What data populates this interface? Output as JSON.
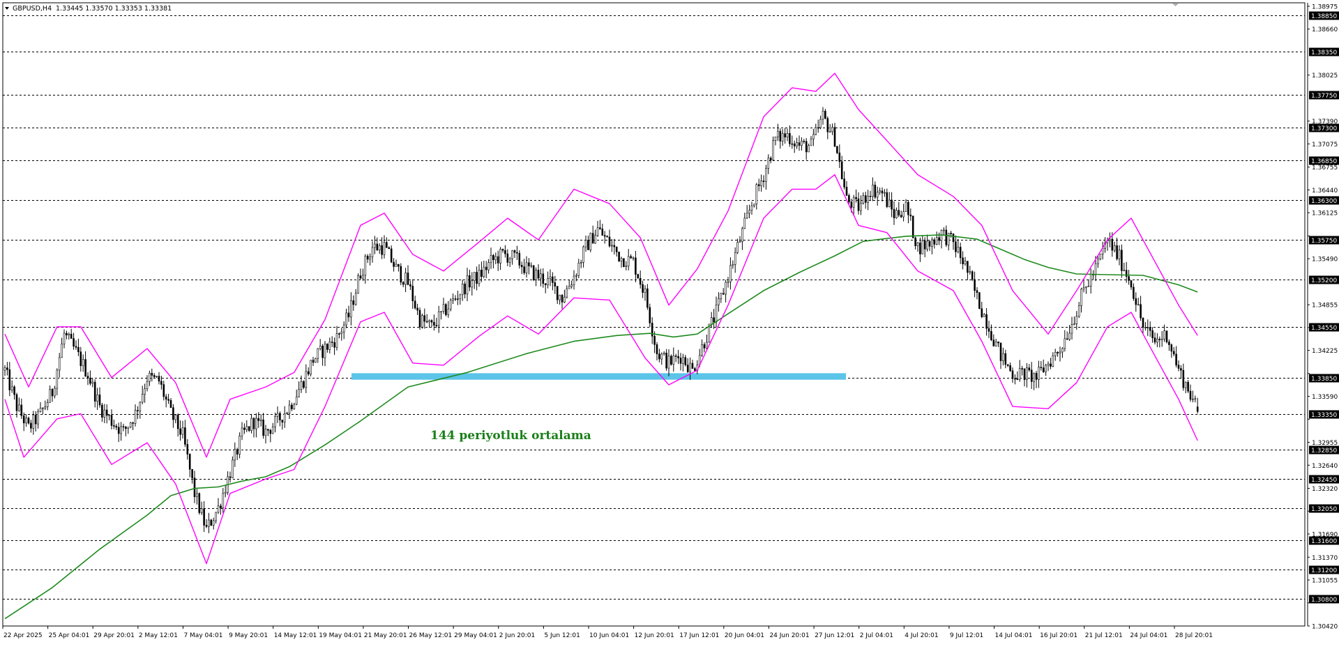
{
  "header": {
    "menu_arrow": "triangle-down-icon",
    "symbol": "GBPUSD,H4",
    "ohlc": "1.33445 1.33570 1.33353 1.33381"
  },
  "annotation": {
    "text": "144 periyotluk ortalama"
  },
  "colors": {
    "candles": "#000000",
    "bands": "#ff00ff",
    "ma": "#1e8a1e",
    "zone": "#5bc4e8",
    "grid": "#000000",
    "tag_bg": "#000000"
  },
  "chart_data": {
    "type": "candlestick",
    "symbol": "GBPUSD",
    "timeframe": "H4",
    "last_bar": {
      "open": 1.33445,
      "high": 1.3357,
      "low": 1.33353,
      "close": 1.33381
    },
    "ylim": [
      1.3042,
      1.38975
    ],
    "price_scale_labels": [
      "1.38975",
      "1.38660",
      "1.38025",
      "1.37390",
      "1.37075",
      "1.36755",
      "1.36440",
      "1.36125",
      "1.35805",
      "1.35490",
      "1.34855",
      "1.34540",
      "1.34225",
      "1.33905",
      "1.33590",
      "1.33275",
      "1.32955",
      "1.32640",
      "1.32320",
      "1.32005",
      "1.31690",
      "1.31370",
      "1.31055",
      "1.30740",
      "1.30420"
    ],
    "horizontal_levels": [
      "1.38850",
      "1.38350",
      "1.37750",
      "1.37300",
      "1.36850",
      "1.36300",
      "1.35750",
      "1.35200",
      "1.34550",
      "1.33850",
      "1.33350",
      "1.32850",
      "1.32450",
      "1.32050",
      "1.31600",
      "1.31200",
      "1.30800"
    ],
    "support_zone": {
      "from": 1.3382,
      "to": 1.3391
    },
    "time_labels": [
      "22 Apr 2025",
      "25 Apr 04:01",
      "29 Apr 20:01",
      "2 May 12:01",
      "7 May 04:01",
      "9 May 20:01",
      "14 May 12:01",
      "19 May 04:01",
      "21 May 20:01",
      "26 May 12:01",
      "29 May 04:01",
      "2 Jun 20:01",
      "5 Jun 12:01",
      "10 Jun 04:01",
      "12 Jun 20:01",
      "17 Jun 12:01",
      "20 Jun 04:01",
      "24 Jun 20:01",
      "27 Jun 12:01",
      "2 Jul 04:01",
      "4 Jul 20:01",
      "9 Jul 12:01",
      "14 Jul 04:01",
      "16 Jul 20:01",
      "21 Jul 12:01",
      "24 Jul 04:01",
      "28 Jul 20:01"
    ],
    "price_path": [
      [
        0,
        1.3395
      ],
      [
        5,
        1.3345
      ],
      [
        10,
        1.3315
      ],
      [
        15,
        1.3335
      ],
      [
        20,
        1.3365
      ],
      [
        25,
        1.3445
      ],
      [
        30,
        1.342
      ],
      [
        35,
        1.339
      ],
      [
        40,
        1.3345
      ],
      [
        45,
        1.3325
      ],
      [
        50,
        1.331
      ],
      [
        55,
        1.3335
      ],
      [
        60,
        1.3385
      ],
      [
        65,
        1.338
      ],
      [
        70,
        1.3335
      ],
      [
        75,
        1.3305
      ],
      [
        80,
        1.3225
      ],
      [
        85,
        1.3175
      ],
      [
        90,
        1.3205
      ],
      [
        95,
        1.3255
      ],
      [
        100,
        1.3305
      ],
      [
        105,
        1.3325
      ],
      [
        110,
        1.331
      ],
      [
        115,
        1.3325
      ],
      [
        120,
        1.3345
      ],
      [
        125,
        1.3375
      ],
      [
        130,
        1.341
      ],
      [
        135,
        1.3425
      ],
      [
        140,
        1.344
      ],
      [
        145,
        1.347
      ],
      [
        150,
        1.353
      ],
      [
        155,
        1.3565
      ],
      [
        160,
        1.3565
      ],
      [
        165,
        1.3535
      ],
      [
        170,
        1.3515
      ],
      [
        175,
        1.3465
      ],
      [
        180,
        1.3455
      ],
      [
        185,
        1.3475
      ],
      [
        190,
        1.3495
      ],
      [
        195,
        1.3515
      ],
      [
        200,
        1.3525
      ],
      [
        205,
        1.3545
      ],
      [
        210,
        1.3555
      ],
      [
        215,
        1.355
      ],
      [
        220,
        1.3535
      ],
      [
        225,
        1.3525
      ],
      [
        230,
        1.3515
      ],
      [
        235,
        1.3495
      ],
      [
        240,
        1.3525
      ],
      [
        245,
        1.3565
      ],
      [
        250,
        1.359
      ],
      [
        255,
        1.357
      ],
      [
        260,
        1.355
      ],
      [
        265,
        1.3545
      ],
      [
        270,
        1.35
      ],
      [
        275,
        1.342
      ],
      [
        280,
        1.3405
      ],
      [
        285,
        1.3415
      ],
      [
        290,
        1.3395
      ],
      [
        295,
        1.3435
      ],
      [
        300,
        1.3475
      ],
      [
        305,
        1.3525
      ],
      [
        310,
        1.3575
      ],
      [
        315,
        1.3625
      ],
      [
        320,
        1.3665
      ],
      [
        325,
        1.3715
      ],
      [
        330,
        1.372
      ],
      [
        335,
        1.3705
      ],
      [
        340,
        1.3705
      ],
      [
        345,
        1.3745
      ],
      [
        350,
        1.3715
      ],
      [
        355,
        1.363
      ],
      [
        360,
        1.362
      ],
      [
        365,
        1.3645
      ],
      [
        370,
        1.364
      ],
      [
        375,
        1.361
      ],
      [
        380,
        1.362
      ],
      [
        385,
        1.3565
      ],
      [
        390,
        1.357
      ],
      [
        395,
        1.3585
      ],
      [
        400,
        1.357
      ],
      [
        405,
        1.354
      ],
      [
        410,
        1.3495
      ],
      [
        415,
        1.3455
      ],
      [
        420,
        1.3415
      ],
      [
        425,
        1.339
      ],
      [
        430,
        1.339
      ],
      [
        435,
        1.3385
      ],
      [
        440,
        1.3405
      ],
      [
        445,
        1.3425
      ],
      [
        450,
        1.346
      ],
      [
        455,
        1.3505
      ],
      [
        460,
        1.3535
      ],
      [
        465,
        1.3575
      ],
      [
        470,
        1.355
      ],
      [
        475,
        1.3515
      ],
      [
        480,
        1.3455
      ],
      [
        485,
        1.3435
      ],
      [
        490,
        1.3445
      ],
      [
        495,
        1.3395
      ],
      [
        500,
        1.3362
      ],
      [
        503,
        1.3338
      ]
    ],
    "series": [
      {
        "name": "144 periyotluk ortalama",
        "type": "moving-average",
        "period": 144,
        "values": [
          [
            0,
            1.3052
          ],
          [
            20,
            1.3095
          ],
          [
            40,
            1.3148
          ],
          [
            60,
            1.3195
          ],
          [
            70,
            1.3222
          ],
          [
            80,
            1.3232
          ],
          [
            90,
            1.3234
          ],
          [
            100,
            1.3242
          ],
          [
            110,
            1.3248
          ],
          [
            120,
            1.3262
          ],
          [
            135,
            1.3292
          ],
          [
            150,
            1.3325
          ],
          [
            170,
            1.3372
          ],
          [
            195,
            1.3392
          ],
          [
            220,
            1.3418
          ],
          [
            240,
            1.3435
          ],
          [
            258,
            1.3443
          ],
          [
            272,
            1.3446
          ],
          [
            282,
            1.3441
          ],
          [
            292,
            1.3445
          ],
          [
            305,
            1.3473
          ],
          [
            320,
            1.3505
          ],
          [
            335,
            1.353
          ],
          [
            350,
            1.3553
          ],
          [
            362,
            1.3573
          ],
          [
            380,
            1.358
          ],
          [
            395,
            1.3582
          ],
          [
            410,
            1.3576
          ],
          [
            420,
            1.3562
          ],
          [
            430,
            1.3548
          ],
          [
            440,
            1.3537
          ],
          [
            452,
            1.3528
          ],
          [
            465,
            1.3527
          ],
          [
            480,
            1.3526
          ],
          [
            495,
            1.3513
          ],
          [
            503,
            1.3503
          ]
        ]
      },
      {
        "name": "",
        "type": "envelope-upper",
        "values": [
          [
            0,
            1.3445
          ],
          [
            10,
            1.3372
          ],
          [
            22,
            1.3455
          ],
          [
            32,
            1.3455
          ],
          [
            45,
            1.3385
          ],
          [
            60,
            1.3425
          ],
          [
            72,
            1.3378
          ],
          [
            85,
            1.3275
          ],
          [
            95,
            1.3355
          ],
          [
            110,
            1.3372
          ],
          [
            122,
            1.3392
          ],
          [
            135,
            1.3465
          ],
          [
            150,
            1.3595
          ],
          [
            160,
            1.3612
          ],
          [
            172,
            1.3555
          ],
          [
            185,
            1.3532
          ],
          [
            200,
            1.3572
          ],
          [
            212,
            1.3605
          ],
          [
            225,
            1.3575
          ],
          [
            240,
            1.3645
          ],
          [
            255,
            1.3625
          ],
          [
            268,
            1.3578
          ],
          [
            280,
            1.3485
          ],
          [
            292,
            1.3535
          ],
          [
            305,
            1.3615
          ],
          [
            320,
            1.3745
          ],
          [
            332,
            1.3785
          ],
          [
            342,
            1.378
          ],
          [
            350,
            1.3805
          ],
          [
            360,
            1.3755
          ],
          [
            372,
            1.3712
          ],
          [
            385,
            1.3665
          ],
          [
            400,
            1.3635
          ],
          [
            412,
            1.3595
          ],
          [
            425,
            1.3505
          ],
          [
            440,
            1.3445
          ],
          [
            452,
            1.3505
          ],
          [
            465,
            1.3575
          ],
          [
            475,
            1.3605
          ],
          [
            485,
            1.3545
          ],
          [
            495,
            1.3485
          ],
          [
            503,
            1.3443
          ]
        ]
      },
      {
        "name": "",
        "type": "envelope-lower",
        "values": [
          [
            0,
            1.3355
          ],
          [
            8,
            1.3275
          ],
          [
            22,
            1.3328
          ],
          [
            32,
            1.3335
          ],
          [
            45,
            1.3265
          ],
          [
            60,
            1.3295
          ],
          [
            72,
            1.3238
          ],
          [
            85,
            1.3128
          ],
          [
            95,
            1.3225
          ],
          [
            110,
            1.3245
          ],
          [
            122,
            1.3258
          ],
          [
            135,
            1.3345
          ],
          [
            150,
            1.3462
          ],
          [
            160,
            1.3475
          ],
          [
            172,
            1.3405
          ],
          [
            185,
            1.3402
          ],
          [
            200,
            1.3442
          ],
          [
            212,
            1.347
          ],
          [
            225,
            1.3445
          ],
          [
            240,
            1.3495
          ],
          [
            255,
            1.3492
          ],
          [
            270,
            1.3412
          ],
          [
            280,
            1.3375
          ],
          [
            292,
            1.3395
          ],
          [
            305,
            1.3485
          ],
          [
            320,
            1.3605
          ],
          [
            332,
            1.3645
          ],
          [
            342,
            1.3645
          ],
          [
            350,
            1.3665
          ],
          [
            360,
            1.3595
          ],
          [
            372,
            1.3585
          ],
          [
            385,
            1.3532
          ],
          [
            400,
            1.3505
          ],
          [
            412,
            1.3435
          ],
          [
            425,
            1.3345
          ],
          [
            440,
            1.3342
          ],
          [
            452,
            1.3378
          ],
          [
            465,
            1.3455
          ],
          [
            475,
            1.3475
          ],
          [
            485,
            1.3415
          ],
          [
            495,
            1.3355
          ],
          [
            503,
            1.3298
          ]
        ]
      }
    ],
    "grid": true
  }
}
